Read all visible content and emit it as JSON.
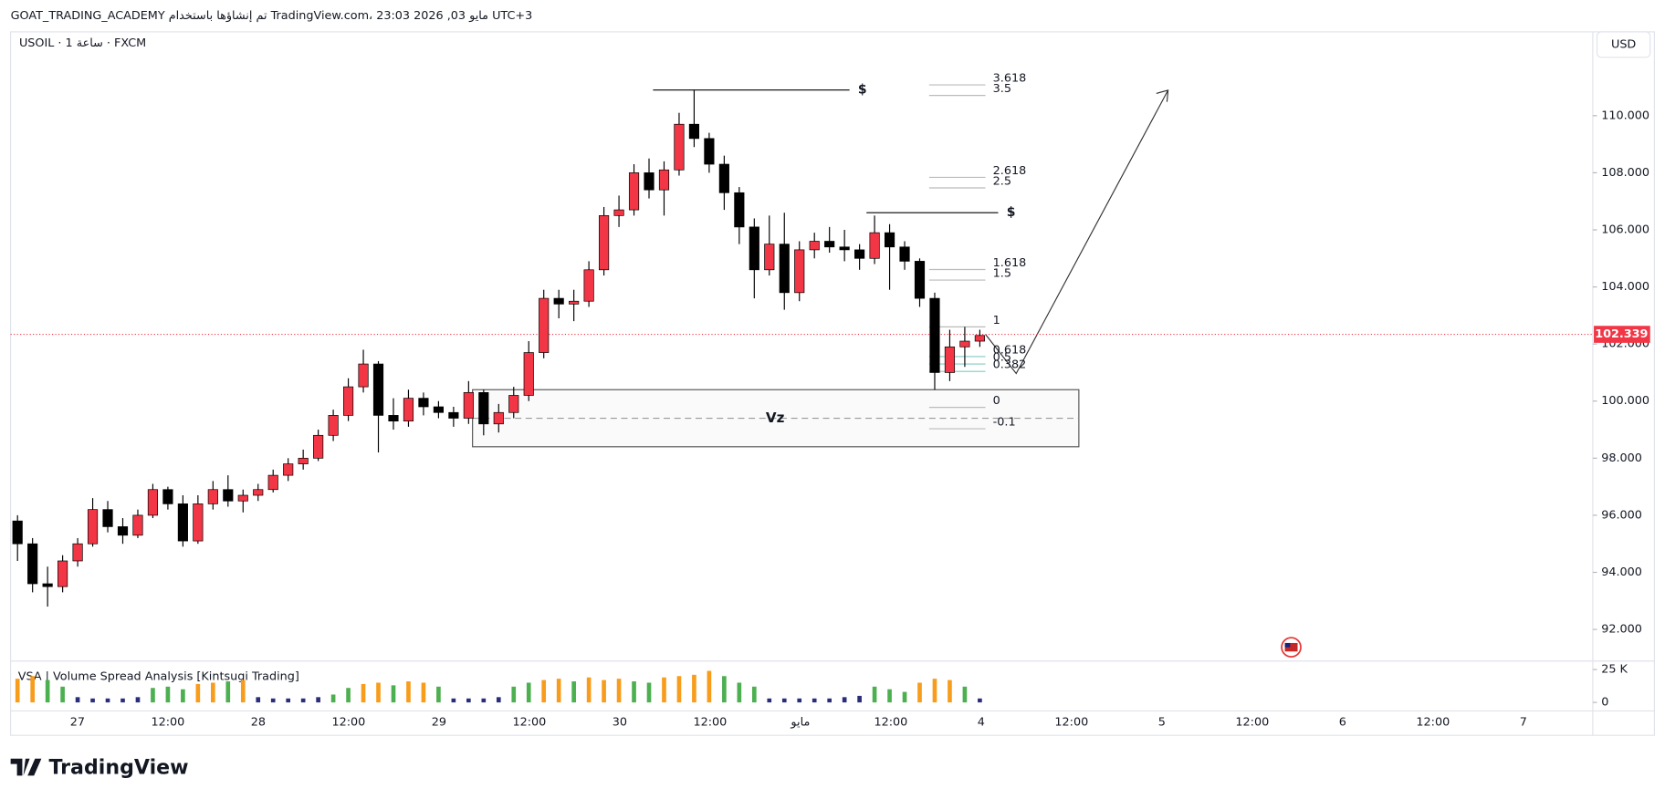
{
  "chart_data": {
    "type": "candlestick",
    "header": "GOAT_TRADING_ACADEMY تم إنشاؤها باستخدام TradingView.com، 23:03 2026 ,03 مايو UTC+3",
    "symbol": "USOIL · 1 ساعة · FXCM",
    "currency": "USD",
    "indicator": "VSA | Volume Spread Analysis [Kintsugi Trading]",
    "brand": "TradingView",
    "up_color": "#f23645",
    "down_color": "#000000",
    "candles": [
      [
        95.8,
        96.0,
        94.4,
        95.0
      ],
      [
        95.0,
        95.2,
        93.3,
        93.6
      ],
      [
        93.6,
        94.2,
        92.8,
        93.5
      ],
      [
        93.5,
        94.6,
        93.3,
        94.4
      ],
      [
        94.4,
        95.2,
        94.2,
        95.0
      ],
      [
        95.0,
        96.6,
        94.9,
        96.2
      ],
      [
        96.2,
        96.5,
        95.4,
        95.6
      ],
      [
        95.6,
        95.9,
        95.0,
        95.3
      ],
      [
        95.3,
        96.2,
        95.2,
        96.0
      ],
      [
        96.0,
        97.1,
        95.9,
        96.9
      ],
      [
        96.9,
        97.0,
        96.2,
        96.4
      ],
      [
        96.4,
        96.7,
        94.9,
        95.1
      ],
      [
        95.1,
        96.7,
        95.0,
        96.4
      ],
      [
        96.4,
        97.2,
        96.2,
        96.9
      ],
      [
        96.9,
        97.4,
        96.3,
        96.5
      ],
      [
        96.5,
        96.9,
        96.1,
        96.7
      ],
      [
        96.7,
        97.1,
        96.5,
        96.9
      ],
      [
        96.9,
        97.6,
        96.8,
        97.4
      ],
      [
        97.4,
        98.0,
        97.2,
        97.8
      ],
      [
        97.8,
        98.3,
        97.6,
        98.0
      ],
      [
        98.0,
        99.0,
        97.9,
        98.8
      ],
      [
        98.8,
        99.7,
        98.6,
        99.5
      ],
      [
        99.5,
        100.8,
        99.3,
        100.5
      ],
      [
        100.5,
        101.8,
        100.3,
        101.3
      ],
      [
        101.3,
        101.4,
        98.2,
        99.5
      ],
      [
        99.5,
        100.1,
        99.0,
        99.3
      ],
      [
        99.3,
        100.4,
        99.1,
        100.1
      ],
      [
        100.1,
        100.3,
        99.5,
        99.8
      ],
      [
        99.8,
        100.0,
        99.4,
        99.6
      ],
      [
        99.6,
        99.8,
        99.1,
        99.4
      ],
      [
        99.4,
        100.7,
        99.2,
        100.3
      ],
      [
        100.3,
        100.4,
        98.8,
        99.2
      ],
      [
        99.2,
        99.9,
        98.9,
        99.6
      ],
      [
        99.6,
        100.5,
        99.4,
        100.2
      ],
      [
        100.2,
        102.1,
        100.0,
        101.7
      ],
      [
        101.7,
        103.9,
        101.5,
        103.6
      ],
      [
        103.6,
        103.9,
        102.9,
        103.4
      ],
      [
        103.4,
        103.9,
        102.8,
        103.5
      ],
      [
        103.5,
        104.9,
        103.3,
        104.6
      ],
      [
        104.6,
        106.8,
        104.4,
        106.5
      ],
      [
        106.5,
        107.2,
        106.1,
        106.7
      ],
      [
        106.7,
        108.3,
        106.5,
        108.0
      ],
      [
        108.0,
        108.5,
        107.1,
        107.4
      ],
      [
        107.4,
        108.4,
        106.5,
        108.1
      ],
      [
        108.1,
        110.1,
        107.9,
        109.7
      ],
      [
        109.7,
        110.9,
        108.9,
        109.2
      ],
      [
        109.2,
        109.4,
        108.0,
        108.3
      ],
      [
        108.3,
        108.6,
        106.7,
        107.3
      ],
      [
        107.3,
        107.5,
        105.5,
        106.1
      ],
      [
        106.1,
        106.4,
        103.6,
        104.6
      ],
      [
        104.6,
        106.5,
        104.4,
        105.5
      ],
      [
        105.5,
        106.6,
        103.2,
        103.8
      ],
      [
        103.8,
        105.6,
        103.5,
        105.3
      ],
      [
        105.3,
        105.9,
        105.0,
        105.6
      ],
      [
        105.6,
        106.1,
        105.2,
        105.4
      ],
      [
        105.4,
        106.0,
        104.9,
        105.3
      ],
      [
        105.3,
        105.5,
        104.6,
        105.0
      ],
      [
        105.0,
        106.5,
        104.8,
        105.9
      ],
      [
        105.9,
        106.2,
        103.9,
        105.4
      ],
      [
        105.4,
        105.6,
        104.6,
        104.9
      ],
      [
        104.9,
        105.0,
        103.3,
        103.6
      ],
      [
        103.6,
        103.8,
        100.4,
        101.0
      ],
      [
        101.0,
        102.5,
        100.7,
        101.9
      ],
      [
        101.9,
        102.6,
        101.2,
        102.1
      ],
      [
        102.1,
        102.5,
        101.9,
        102.3
      ]
    ],
    "volumes": [
      18000,
      20000,
      17000,
      12000,
      4000,
      3000,
      3000,
      3000,
      4000,
      11000,
      12000,
      10000,
      14000,
      15000,
      16000,
      17000,
      4000,
      3000,
      3000,
      3000,
      4000,
      6000,
      11000,
      14000,
      15000,
      13000,
      16000,
      15000,
      12000,
      3000,
      3000,
      3000,
      4000,
      12000,
      15000,
      17000,
      18000,
      16000,
      19000,
      17000,
      18000,
      16000,
      15000,
      19000,
      20000,
      21000,
      24000,
      20000,
      15000,
      12000,
      3000,
      3000,
      3000,
      3000,
      3000,
      4000,
      5000,
      12000,
      10000,
      8000,
      15000,
      18000,
      17000,
      12000,
      3000
    ],
    "volume_colors": [
      "#f89c1c",
      "#f89c1c",
      "#4caf50",
      "#4caf50",
      "#2a2e7a",
      "#2a2e7a",
      "#2a2e7a",
      "#2a2e7a",
      "#2a2e7a",
      "#4caf50",
      "#4caf50",
      "#4caf50",
      "#f89c1c",
      "#f89c1c",
      "#4caf50",
      "#f89c1c",
      "#2a2e7a",
      "#2a2e7a",
      "#2a2e7a",
      "#2a2e7a",
      "#2a2e7a",
      "#4caf50",
      "#4caf50",
      "#f89c1c",
      "#f89c1c",
      "#4caf50",
      "#f89c1c",
      "#f89c1c",
      "#4caf50",
      "#2a2e7a",
      "#2a2e7a",
      "#2a2e7a",
      "#2a2e7a",
      "#4caf50",
      "#4caf50",
      "#f89c1c",
      "#f89c1c",
      "#4caf50",
      "#f89c1c",
      "#f89c1c",
      "#f89c1c",
      "#4caf50",
      "#4caf50",
      "#f89c1c",
      "#f89c1c",
      "#f89c1c",
      "#f89c1c",
      "#4caf50",
      "#4caf50",
      "#4caf50",
      "#2a2e7a",
      "#2a2e7a",
      "#2a2e7a",
      "#2a2e7a",
      "#2a2e7a",
      "#2a2e7a",
      "#2a2e7a",
      "#4caf50",
      "#4caf50",
      "#4caf50",
      "#f89c1c",
      "#f89c1c",
      "#f89c1c",
      "#4caf50",
      "#2a2e7a"
    ],
    "ylim": [
      91,
      112
    ],
    "yticks": [
      {
        "value": 92,
        "label": "92.000"
      },
      {
        "value": 94,
        "label": "94.000"
      },
      {
        "value": 96,
        "label": "96.000"
      },
      {
        "value": 98,
        "label": "98.000"
      },
      {
        "value": 100,
        "label": "100.000"
      },
      {
        "value": 102,
        "label": "102.000"
      },
      {
        "value": 104,
        "label": "104.000"
      },
      {
        "value": 106,
        "label": "106.000"
      },
      {
        "value": 108,
        "label": "108.000"
      },
      {
        "value": 110,
        "label": "110.000"
      }
    ],
    "vlim": [
      0,
      25000
    ],
    "vticks": [
      {
        "value": 0,
        "label": "0"
      },
      {
        "value": 25000,
        "label": "25 K"
      }
    ],
    "xticks": [
      "27",
      "12:00",
      "28",
      "12:00",
      "29",
      "12:00",
      "30",
      "12:00",
      "مايو",
      "12:00",
      "4",
      "12:00",
      "5",
      "12:00",
      "6",
      "12:00",
      "7"
    ],
    "last_price": 102.339,
    "liquidity": {
      "label": "$",
      "prices": [
        110.9,
        106.6
      ]
    },
    "zone": {
      "label": "Vz",
      "top": 100.4,
      "bottom": 98.4,
      "mid": 99.4
    },
    "fib": {
      "levels": [
        3.618,
        3.5,
        2.618,
        2.5,
        1.618,
        1.5,
        1,
        0.618,
        0.5,
        0.382,
        0,
        -0.1
      ],
      "prices": [
        111.08,
        110.71,
        107.84,
        107.47,
        104.61,
        104.24,
        102.6,
        101.56,
        101.3,
        101.04,
        99.78,
        99.03
      ]
    },
    "grid": false
  }
}
